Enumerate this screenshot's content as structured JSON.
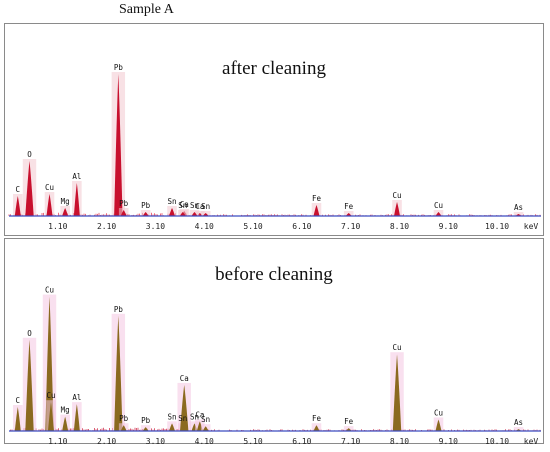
{
  "title": "Sample A",
  "chart_data": [
    {
      "type": "line",
      "title": "after cleaning",
      "xlabel": "keV",
      "x_ticks": [
        "1.10",
        "2.10",
        "3.10",
        "4.10",
        "5.10",
        "6.10",
        "7.10",
        "8.10",
        "9.10",
        "10.10"
      ],
      "xlim": [
        0.1,
        11.0
      ],
      "ylim": [
        0,
        150
      ],
      "colors": {
        "peak": "#c8102e",
        "noise": "#e8485e",
        "shadow": "#f2c8cf",
        "baseline": "#3b4cc0"
      },
      "peaks": [
        {
          "label": "C",
          "x": 0.28,
          "y": 20
        },
        {
          "label": "O",
          "x": 0.52,
          "y": 55
        },
        {
          "label": "Cu",
          "x": 0.93,
          "y": 22
        },
        {
          "label": "Mg",
          "x": 1.25,
          "y": 8
        },
        {
          "label": "Al",
          "x": 1.49,
          "y": 33
        },
        {
          "label": "Pb",
          "x": 2.34,
          "y": 142
        },
        {
          "label": "Pb",
          "x": 2.45,
          "y": 6
        },
        {
          "label": "Pb",
          "x": 2.9,
          "y": 4
        },
        {
          "label": "Sn",
          "x": 3.44,
          "y": 8
        },
        {
          "label": "Ca",
          "x": 3.69,
          "y": 5
        },
        {
          "label": "Sn",
          "x": 3.66,
          "y": 4
        },
        {
          "label": "Ca",
          "x": 4.01,
          "y": 3
        },
        {
          "label": "Sn",
          "x": 3.9,
          "y": 4
        },
        {
          "label": "Sn",
          "x": 4.13,
          "y": 3
        },
        {
          "label": "Fe",
          "x": 6.4,
          "y": 11
        },
        {
          "label": "Fe",
          "x": 7.06,
          "y": 3
        },
        {
          "label": "Cu",
          "x": 8.05,
          "y": 14
        },
        {
          "label": "Cu",
          "x": 8.9,
          "y": 4
        },
        {
          "label": "As",
          "x": 10.54,
          "y": 2
        },
        {
          "label": "As",
          "x": 11.73,
          "y": 1
        }
      ]
    },
    {
      "type": "line",
      "title": "before cleaning",
      "xlabel": "keV",
      "x_ticks": [
        "1.10",
        "2.10",
        "3.10",
        "4.10",
        "5.10",
        "6.10",
        "7.10",
        "8.10",
        "9.10",
        "10.10"
      ],
      "xlim": [
        0.1,
        11.0
      ],
      "ylim": [
        0,
        150
      ],
      "colors": {
        "peak": "#8b6a1f",
        "noise": "#d23a55",
        "shadow": "#f4c6e2",
        "baseline": "#3b4cc0"
      },
      "peaks": [
        {
          "label": "C",
          "x": 0.28,
          "y": 25
        },
        {
          "label": "O",
          "x": 0.52,
          "y": 95
        },
        {
          "label": "Cu",
          "x": 0.93,
          "y": 140
        },
        {
          "label": "Cu",
          "x": 0.96,
          "y": 30
        },
        {
          "label": "Mg",
          "x": 1.25,
          "y": 15
        },
        {
          "label": "Al",
          "x": 1.49,
          "y": 28
        },
        {
          "label": "Pb",
          "x": 2.34,
          "y": 120
        },
        {
          "label": "Pb",
          "x": 2.45,
          "y": 6
        },
        {
          "label": "Pb",
          "x": 2.9,
          "y": 4
        },
        {
          "label": "Sn",
          "x": 3.44,
          "y": 8
        },
        {
          "label": "Sn",
          "x": 3.66,
          "y": 6
        },
        {
          "label": "Ca",
          "x": 3.69,
          "y": 48
        },
        {
          "label": "Sn",
          "x": 3.9,
          "y": 8
        },
        {
          "label": "Ca",
          "x": 4.01,
          "y": 10
        },
        {
          "label": "Sn",
          "x": 4.13,
          "y": 5
        },
        {
          "label": "Fe",
          "x": 6.4,
          "y": 6
        },
        {
          "label": "Fe",
          "x": 7.06,
          "y": 3
        },
        {
          "label": "Cu",
          "x": 8.05,
          "y": 80
        },
        {
          "label": "Cu",
          "x": 8.9,
          "y": 12
        },
        {
          "label": "As",
          "x": 10.54,
          "y": 2
        },
        {
          "label": "As",
          "x": 11.73,
          "y": 1
        }
      ]
    }
  ]
}
